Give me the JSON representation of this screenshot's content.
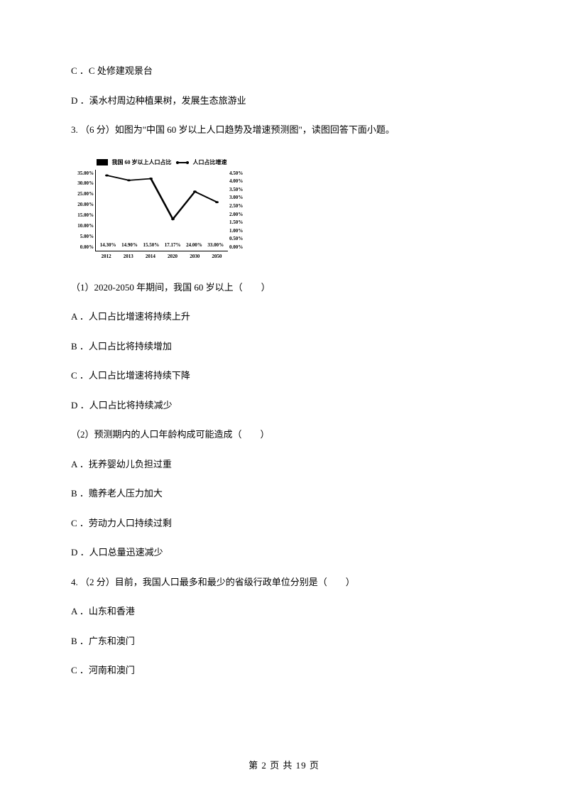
{
  "options_top": {
    "c": "C ．C 处修建观景台",
    "d": "D ．溪水村周边种植果树，发展生态旅游业"
  },
  "q3": {
    "stem": "3. （6 分）如图为\"中国 60 岁以上人口趋势及增速预测图\"，读图回答下面小题。",
    "sub1": "（1）2020‑2050 年期间，我国 60 岁以上（　　）",
    "sub1_opts": {
      "a": "A ．人口占比增速将持续上升",
      "b": "B ．人口占比将持续增加",
      "c": "C ．人口占比增速将持续下降",
      "d": "D ．人口占比将持续减少"
    },
    "sub2": "（2）预测期内的人口年龄构成可能造成（　　）",
    "sub2_opts": {
      "a": "A ．抚养婴幼儿负担过重",
      "b": "B ．赡养老人压力加大",
      "c": "C ．劳动力人口持续过剩",
      "d": "D ．人口总量迅速减少"
    }
  },
  "q4": {
    "stem": "4. （2 分）目前，我国人口最多和最少的省级行政单位分别是（　　）",
    "opts": {
      "a": "A ．山东和香港",
      "b": "B ．广东和澳门",
      "c": "C ．河南和澳门"
    }
  },
  "chart": {
    "legend_bar": "我国 60 岁以上人口占比",
    "legend_line": "人口占比增速",
    "left_ticks": [
      "35.00%",
      "30.00%",
      "25.00%",
      "20.00%",
      "15.00%",
      "10.00%",
      "5.00%",
      "0.00%"
    ],
    "right_ticks": [
      "4.50%",
      "4.00%",
      "3.50%",
      "3.00%",
      "2.50%",
      "2.00%",
      "1.50%",
      "1.00%",
      "0.50%",
      "0.00%"
    ],
    "categories": [
      "2012",
      "2013",
      "2014",
      "2020",
      "2030",
      "2050"
    ],
    "bar_values": [
      14.3,
      14.9,
      15.5,
      17.17,
      24.0,
      33.0
    ],
    "bar_labels": [
      "14.30%",
      "14.90%",
      "15.50%",
      "17.17%",
      "24.00%",
      "33.00%"
    ],
    "bar_max": 35,
    "line_values_rel": [
      0.93,
      0.87,
      0.89,
      0.39,
      0.73,
      0.6
    ],
    "colors": {
      "bar": "#000000",
      "background": "#ffffff",
      "axis": "#000000"
    },
    "font_size_axis": 7
  },
  "footer": "第 2 页 共 19 页"
}
